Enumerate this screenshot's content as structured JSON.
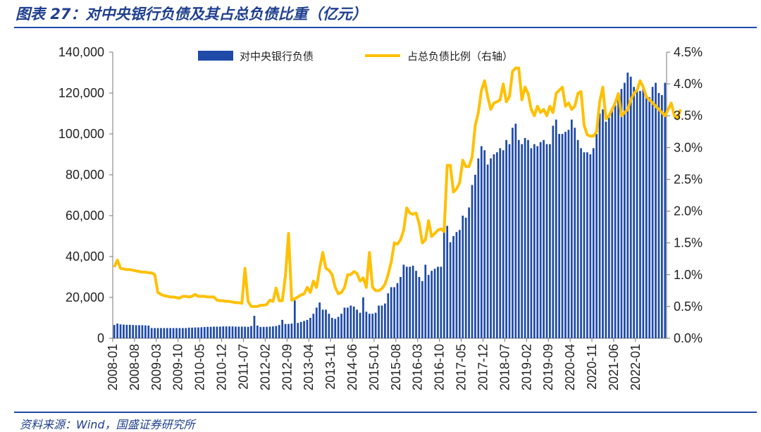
{
  "header": {
    "title": "图表 27：对中央银行负债及其占总负债比重（亿元）"
  },
  "footer": {
    "source": "资料来源：Wind，国盛证券研究所"
  },
  "colors": {
    "bar": "#1f4aa8",
    "line": "#ffc000",
    "text": "#1f3f8f"
  },
  "chart_data": {
    "type": "bar+line",
    "title": "",
    "legend_position": "top",
    "grid": false,
    "x_tick_labels": [
      "2008-01",
      "2008-08",
      "2009-03",
      "2009-10",
      "2010-05",
      "2010-12",
      "2011-07",
      "2012-02",
      "2012-09",
      "2013-04",
      "2013-11",
      "2014-06",
      "2015-01",
      "2015-08",
      "2016-03",
      "2016-10",
      "2017-05",
      "2017-12",
      "2018-07",
      "2019-02",
      "2019-09",
      "2020-04",
      "2020-11",
      "2021-06",
      "2022-01"
    ],
    "y_left": {
      "min": 0,
      "max": 140000,
      "ticks": [
        "0",
        "20,000",
        "40,000",
        "60,000",
        "80,000",
        "100,000",
        "120,000",
        "140,000"
      ]
    },
    "y_right": {
      "min": 0,
      "max": 4.5,
      "ticks": [
        "0.0%",
        "0.5%",
        "1.0%",
        "1.5%",
        "2.0%",
        "2.5%",
        "3.0%",
        "3.5%",
        "4.0%",
        "4.5%"
      ]
    },
    "series": [
      {
        "name": "对中央银行负债",
        "type": "bar",
        "axis": "left",
        "values": [
          6500,
          7200,
          6800,
          6700,
          6600,
          6600,
          6500,
          6400,
          6400,
          6400,
          6300,
          6200,
          5000,
          5000,
          5000,
          5000,
          5000,
          5000,
          5000,
          5000,
          5000,
          5000,
          5000,
          5000,
          5200,
          5200,
          5300,
          5300,
          5400,
          5500,
          5600,
          5600,
          5700,
          5700,
          5700,
          5800,
          5800,
          5800,
          5800,
          5700,
          5700,
          5700,
          5700,
          5600,
          6000,
          11000,
          6200,
          5500,
          5600,
          5600,
          5700,
          5800,
          6000,
          6500,
          9000,
          7000,
          7000,
          7200,
          18500,
          7500,
          8000,
          8500,
          9000,
          10000,
          12000,
          15000,
          17500,
          14000,
          14000,
          12000,
          10000,
          9500,
          10500,
          12000,
          15000,
          15000,
          16000,
          15500,
          14000,
          12500,
          20000,
          13000,
          12000,
          12000,
          12500,
          16000,
          16000,
          17000,
          22000,
          25000,
          25000,
          27000,
          30000,
          36000,
          35000,
          35000,
          35500,
          33000,
          30000,
          28000,
          36000,
          31000,
          33000,
          34000,
          35000,
          35000,
          55000,
          55000,
          47000,
          50000,
          52000,
          53000,
          60000,
          59000,
          64000,
          75000,
          80000,
          88000,
          94000,
          92000,
          85000,
          88000,
          90000,
          91000,
          93000,
          92000,
          97000,
          95000,
          103000,
          105000,
          97000,
          95000,
          98000,
          97000,
          93000,
          95000,
          94000,
          96000,
          97000,
          95000,
          95000,
          104000,
          107000,
          100000,
          100000,
          101000,
          102000,
          107000,
          103000,
          97000,
          93000,
          91000,
          91000,
          90000,
          93000,
          100000,
          110000,
          112000,
          106000,
          108000,
          112000,
          114000,
          118000,
          122000,
          125000,
          130000,
          128000,
          123000,
          122000,
          121000,
          122000,
          118000,
          118000,
          123000,
          125000,
          120000,
          119000,
          125000
        ]
      },
      {
        "name": "占总负债比例（右轴）",
        "type": "line",
        "axis": "right",
        "values": [
          1.12,
          1.23,
          1.1,
          1.09,
          1.08,
          1.08,
          1.07,
          1.06,
          1.05,
          1.04,
          1.04,
          1.03,
          1.03,
          1.0,
          0.72,
          0.69,
          0.67,
          0.66,
          0.65,
          0.65,
          0.64,
          0.63,
          0.66,
          0.66,
          0.65,
          0.66,
          0.69,
          0.66,
          0.66,
          0.66,
          0.65,
          0.65,
          0.65,
          0.6,
          0.59,
          0.59,
          0.58,
          0.58,
          0.57,
          0.56,
          0.56,
          0.55,
          1.1,
          0.58,
          0.5,
          0.5,
          0.5,
          0.52,
          0.52,
          0.53,
          0.6,
          0.58,
          0.79,
          0.59,
          0.59,
          0.98,
          1.65,
          0.6,
          0.62,
          0.65,
          0.68,
          0.7,
          0.8,
          0.72,
          0.9,
          0.8,
          1.1,
          1.35,
          1.1,
          1.07,
          1.0,
          0.8,
          0.7,
          0.72,
          0.8,
          1.0,
          1.0,
          1.05,
          1.02,
          0.9,
          0.95,
          0.8,
          1.35,
          0.8,
          0.75,
          0.75,
          0.78,
          0.85,
          1.0,
          1.2,
          1.5,
          1.48,
          1.55,
          1.7,
          2.05,
          1.97,
          1.95,
          1.97,
          1.8,
          1.5,
          1.55,
          1.85,
          1.6,
          1.65,
          1.7,
          1.72,
          1.68,
          2.72,
          2.72,
          2.3,
          2.35,
          2.45,
          2.8,
          2.7,
          2.7,
          2.85,
          3.35,
          3.55,
          3.9,
          4.05,
          3.8,
          3.6,
          3.7,
          3.72,
          3.75,
          4.0,
          3.72,
          3.8,
          4.2,
          4.25,
          4.25,
          3.75,
          3.95,
          3.85,
          3.6,
          3.5,
          3.65,
          3.55,
          3.6,
          3.5,
          3.65,
          3.55,
          3.85,
          3.9,
          3.95,
          3.65,
          3.7,
          3.6,
          3.65,
          3.85,
          3.88,
          3.35,
          3.2,
          3.18,
          3.18,
          3.25,
          3.72,
          3.95,
          3.45,
          3.5,
          3.6,
          3.7,
          3.85,
          3.5,
          3.55,
          3.6,
          3.75,
          3.85,
          3.9,
          4.05,
          3.95,
          3.8,
          3.75,
          3.7,
          3.65,
          3.6,
          3.55,
          3.5,
          3.6,
          3.7,
          3.5,
          3.45,
          3.6
        ]
      }
    ]
  }
}
